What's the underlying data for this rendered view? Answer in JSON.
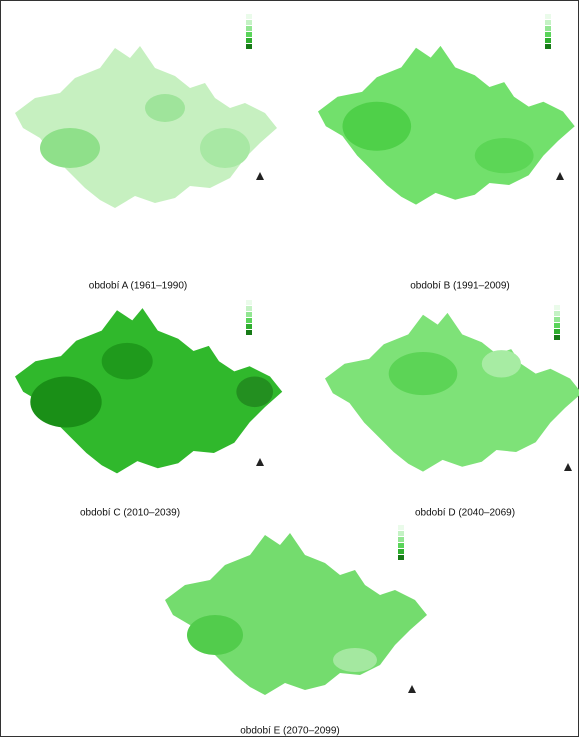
{
  "panels": [
    {
      "caption": "období A (1961–1990)"
    },
    {
      "caption": "období B (1991–2009)"
    },
    {
      "caption": "období C (2010–2039)"
    },
    {
      "caption": "období D (2040–2069)"
    },
    {
      "caption": "období E (2070–2099)"
    }
  ]
}
